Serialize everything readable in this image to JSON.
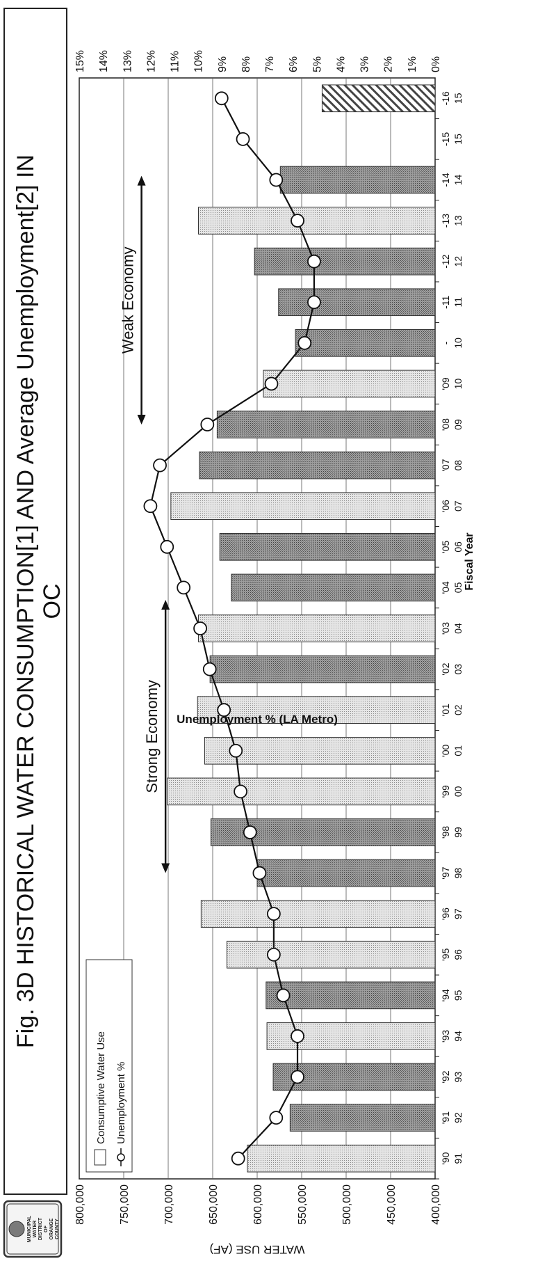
{
  "logo": {
    "line1": "MUNICIPAL",
    "line2": "WATER",
    "line3": "DISTRICT",
    "line4": "OF",
    "line5": "ORANGE",
    "line6": "COUNTY"
  },
  "chart_data": {
    "type": "bar",
    "title": "Fig. 3D  HISTORICAL WATER CONSUMPTION[1] AND Average Unemployment[2]  IN",
    "title_line2": "OC",
    "xlabel": "Fiscal Year",
    "ylabel": "WATER USE (AF)",
    "y2label": "Unemployment % (LA Metro)",
    "ylim": [
      400000,
      800000
    ],
    "y2lim": [
      0,
      15
    ],
    "yticks": [
      "400,000",
      "450,000",
      "500,000",
      "550,000",
      "600,000",
      "650,000",
      "700,000",
      "750,000",
      "800,000"
    ],
    "y2ticks": [
      "0%",
      "1%",
      "2%",
      "3%",
      "4%",
      "5%",
      "6%",
      "7%",
      "8%",
      "9%",
      "10%",
      "11%",
      "12%",
      "13%",
      "14%",
      "15%"
    ],
    "categories": [
      {
        "top": "'90",
        "bottom": "91"
      },
      {
        "top": "'91",
        "bottom": "92"
      },
      {
        "top": "'92",
        "bottom": "93"
      },
      {
        "top": "'93",
        "bottom": "94"
      },
      {
        "top": "'94",
        "bottom": "95"
      },
      {
        "top": "'95",
        "bottom": "96"
      },
      {
        "top": "'96",
        "bottom": "97"
      },
      {
        "top": "'97",
        "bottom": "98"
      },
      {
        "top": "'98",
        "bottom": "99"
      },
      {
        "top": "'99",
        "bottom": "00"
      },
      {
        "top": "'00",
        "bottom": "01"
      },
      {
        "top": "'01",
        "bottom": "02"
      },
      {
        "top": "'02",
        "bottom": "03"
      },
      {
        "top": "'03",
        "bottom": "04"
      },
      {
        "top": "'04",
        "bottom": "05"
      },
      {
        "top": "'05",
        "bottom": "06"
      },
      {
        "top": "'06",
        "bottom": "07"
      },
      {
        "top": "'07",
        "bottom": "08"
      },
      {
        "top": "'08",
        "bottom": "09"
      },
      {
        "top": "'09",
        "bottom": "10"
      },
      {
        "top": "-",
        "bottom": "10"
      },
      {
        "top": "-11",
        "bottom": "11"
      },
      {
        "top": "-12",
        "bottom": "12"
      },
      {
        "top": "-13",
        "bottom": "13"
      },
      {
        "top": "-14",
        "bottom": "14"
      },
      {
        "top": "-15",
        "bottom": "15"
      },
      {
        "top": "-16",
        "bottom": "15"
      }
    ],
    "series": [
      {
        "name": "Consumptive Water Use",
        "axis": "left",
        "values": [
          611000,
          563000,
          582000,
          589000,
          590000,
          634000,
          663000,
          600000,
          652000,
          701000,
          659000,
          667000,
          653000,
          666000,
          629000,
          642000,
          697000,
          665000,
          645000,
          593000,
          557000,
          576000,
          603000,
          666000,
          574000,
          null,
          null
        ]
      },
      {
        "name": "Unemployment %",
        "axis": "right",
        "values": [
          8.3,
          6.7,
          5.8,
          5.8,
          6.4,
          6.8,
          6.8,
          7.4,
          7.8,
          8.2,
          8.4,
          8.9,
          9.5,
          9.9,
          10.6,
          11.3,
          12.0,
          11.6,
          9.6,
          6.9,
          5.5,
          5.1,
          5.1,
          5.8,
          6.7,
          8.1,
          9.0
        ]
      },
      {
        "name": "",
        "axis": "left",
        "values": [
          null,
          null,
          null,
          null,
          null,
          null,
          null,
          null,
          null,
          null,
          null,
          null,
          null,
          null,
          null,
          null,
          null,
          null,
          null,
          null,
          null,
          null,
          null,
          null,
          null,
          null,
          527000
        ]
      }
    ],
    "fills": [
      "light",
      "dark",
      "dark",
      "light",
      "dark",
      "light",
      "light",
      "dark",
      "dark",
      "light",
      "light",
      "light",
      "dark",
      "light",
      "dark",
      "dark",
      "light",
      "dark",
      "dark",
      "light",
      "dark",
      "dark",
      "dark",
      "light",
      "dark",
      "dark",
      "hatch"
    ],
    "annotations": [
      {
        "text": "Strong Economy",
        "x_from": 7,
        "x_to": 13.7,
        "level": 703000
      },
      {
        "text": "Weak Economy",
        "x_from": 18,
        "x_to": 24.1,
        "level": 730000
      }
    ],
    "legend": "top-left"
  }
}
